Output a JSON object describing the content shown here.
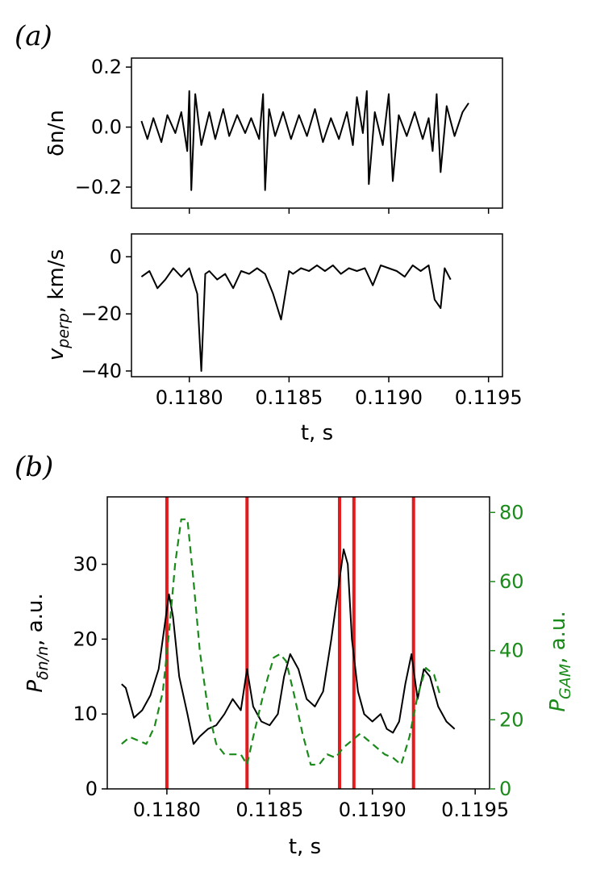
{
  "chart_data": [
    {
      "panel": "(a)",
      "type": "line",
      "title": "",
      "xlabel": "",
      "ylabel": "δn/n",
      "xlim": [
        0.11771,
        0.11957
      ],
      "ylim": [
        -0.27,
        0.23
      ],
      "yticks": [
        "0.2",
        "0.0",
        "−0.2"
      ],
      "ytick_values": [
        0.2,
        0.0,
        -0.2
      ],
      "xtick_values": [
        0.118,
        0.1185,
        0.119,
        0.1195
      ],
      "series": [
        {
          "name": "δn/n",
          "color": "#000000",
          "x": [
            0.11776,
            0.11779,
            0.11782,
            0.11786,
            0.11789,
            0.11793,
            0.11796,
            0.11799,
            0.118,
            0.11801,
            0.11803,
            0.11806,
            0.1181,
            0.11813,
            0.11817,
            0.1182,
            0.11824,
            0.11828,
            0.11831,
            0.11835,
            0.11837,
            0.11838,
            0.1184,
            0.11843,
            0.11847,
            0.11851,
            0.11855,
            0.11859,
            0.11863,
            0.11867,
            0.11871,
            0.11875,
            0.11879,
            0.11882,
            0.11884,
            0.11887,
            0.11889,
            0.1189,
            0.11893,
            0.11897,
            0.119,
            0.11902,
            0.11905,
            0.11909,
            0.11913,
            0.11917,
            0.1192,
            0.11922,
            0.11924,
            0.11926,
            0.11929,
            0.11933,
            0.11937,
            0.1194
          ],
          "values": [
            0.02,
            -0.04,
            0.03,
            -0.05,
            0.04,
            -0.02,
            0.05,
            -0.08,
            0.12,
            -0.21,
            0.11,
            -0.06,
            0.05,
            -0.04,
            0.06,
            -0.03,
            0.04,
            -0.02,
            0.03,
            -0.04,
            0.11,
            -0.21,
            0.06,
            -0.03,
            0.05,
            -0.04,
            0.04,
            -0.03,
            0.06,
            -0.05,
            0.03,
            -0.04,
            0.05,
            -0.06,
            0.1,
            -0.02,
            0.12,
            -0.19,
            0.05,
            -0.06,
            0.11,
            -0.18,
            0.04,
            -0.03,
            0.05,
            -0.04,
            0.03,
            -0.08,
            0.11,
            -0.15,
            0.07,
            -0.03,
            0.05,
            0.08
          ]
        }
      ]
    },
    {
      "panel": "",
      "type": "line",
      "title": "",
      "xlabel": "t, s",
      "ylabel": "v_perp, km/s",
      "ylabel_main": "v",
      "ylabel_sub": "perp",
      "ylabel_rest": ", km/s",
      "xlim": [
        0.11771,
        0.11957
      ],
      "ylim": [
        -42,
        8
      ],
      "yticks": [
        "0",
        "−20",
        "−40"
      ],
      "ytick_values": [
        0,
        -20,
        -40
      ],
      "xticks": [
        "0.1180",
        "0.1185",
        "0.1190",
        "0.1195"
      ],
      "xtick_values": [
        0.118,
        0.1185,
        0.119,
        0.1195
      ],
      "series": [
        {
          "name": "v_perp",
          "color": "#000000",
          "x": [
            0.11776,
            0.1178,
            0.11784,
            0.11788,
            0.11792,
            0.11796,
            0.118,
            0.11804,
            0.11806,
            0.11808,
            0.1181,
            0.11814,
            0.11818,
            0.11822,
            0.11826,
            0.1183,
            0.11834,
            0.11838,
            0.11842,
            0.11846,
            0.1185,
            0.11852,
            0.11856,
            0.1186,
            0.11864,
            0.11868,
            0.11872,
            0.11876,
            0.1188,
            0.11884,
            0.11888,
            0.11892,
            0.11896,
            0.119,
            0.11904,
            0.11908,
            0.11912,
            0.11916,
            0.1192,
            0.11923,
            0.11926,
            0.11928,
            0.11931
          ],
          "values": [
            -7,
            -5,
            -11,
            -8,
            -4,
            -7,
            -4,
            -13,
            -40,
            -6,
            -5,
            -8,
            -6,
            -11,
            -5,
            -6,
            -4,
            -6,
            -13,
            -22,
            -5,
            -6,
            -4,
            -5,
            -3,
            -5,
            -3,
            -6,
            -4,
            -5,
            -4,
            -10,
            -3,
            -4,
            -5,
            -7,
            -3,
            -5,
            -3,
            -15,
            -18,
            -4,
            -8
          ]
        }
      ]
    },
    {
      "panel": "(b)",
      "type": "line",
      "title": "",
      "xlabel": "t, s",
      "ylabel": "P_δn/n, a.u.",
      "ylabel_main": "P",
      "ylabel_sub": "δn/n",
      "ylabel_rest": ", a.u.",
      "ylabel_right": "P_GAM, a.u.",
      "ylabel_right_main": "P",
      "ylabel_right_sub": "GAM",
      "ylabel_right_rest": ", a.u.",
      "xlim": [
        0.11771,
        0.11957
      ],
      "ylim": [
        0,
        39
      ],
      "ylim_right": [
        0,
        84.5
      ],
      "yticks": [
        "0",
        "10",
        "20",
        "30"
      ],
      "ytick_values": [
        0,
        10,
        20,
        30
      ],
      "yticks_right": [
        "0",
        "20",
        "40",
        "60",
        "80"
      ],
      "ytick_right_values": [
        0,
        20,
        40,
        60,
        80
      ],
      "xticks": [
        "0.1180",
        "0.1185",
        "0.1190",
        "0.1195"
      ],
      "xtick_values": [
        0.118,
        0.1185,
        0.119,
        0.1195
      ],
      "vlines": [
        0.118,
        0.11839,
        0.11884,
        0.11891,
        0.1192
      ],
      "vline_color": "#e41a1c",
      "series": [
        {
          "name": "P_δn/n",
          "color": "#000000",
          "axis": "left",
          "x": [
            0.11778,
            0.1178,
            0.11784,
            0.11788,
            0.11792,
            0.11796,
            0.11799,
            0.11801,
            0.11803,
            0.11806,
            0.1181,
            0.11813,
            0.11816,
            0.1182,
            0.11824,
            0.11828,
            0.11832,
            0.11836,
            0.11839,
            0.11842,
            0.11846,
            0.1185,
            0.11854,
            0.11857,
            0.1186,
            0.11864,
            0.11868,
            0.11872,
            0.11876,
            0.1188,
            0.11884,
            0.11886,
            0.11888,
            0.1189,
            0.11893,
            0.11896,
            0.119,
            0.11904,
            0.11907,
            0.1191,
            0.11913,
            0.11916,
            0.11919,
            0.11922,
            0.11925,
            0.11928,
            0.11932,
            0.11936,
            0.1194
          ],
          "values": [
            14,
            13.5,
            9.5,
            10.5,
            12.5,
            16,
            22,
            26,
            23,
            15,
            10,
            6,
            7,
            8,
            8.5,
            10,
            12,
            10.5,
            16,
            11,
            9,
            8.5,
            10,
            15,
            18,
            16,
            12,
            11,
            13,
            20,
            28,
            32,
            30,
            20,
            13,
            10,
            9,
            10,
            8,
            7.5,
            9,
            14,
            18,
            12,
            16,
            15,
            11,
            9,
            8
          ]
        },
        {
          "name": "P_GAM",
          "color": "#1a8a1a",
          "axis": "right",
          "dashed": true,
          "x": [
            0.11778,
            0.11782,
            0.11786,
            0.1179,
            0.11794,
            0.11798,
            0.11801,
            0.11804,
            0.11807,
            0.1181,
            0.11813,
            0.11816,
            0.1182,
            0.11824,
            0.11828,
            0.11832,
            0.11836,
            0.11839,
            0.11842,
            0.11846,
            0.11849,
            0.11852,
            0.11855,
            0.11858,
            0.11862,
            0.11866,
            0.1187,
            0.11874,
            0.11878,
            0.11882,
            0.11886,
            0.1189,
            0.11894,
            0.11898,
            0.11902,
            0.11906,
            0.1191,
            0.11914,
            0.11918,
            0.11922,
            0.11926,
            0.1193,
            0.11933
          ],
          "values": [
            13,
            15,
            14,
            13,
            18,
            28,
            45,
            65,
            78,
            78,
            60,
            40,
            23,
            13,
            10,
            10,
            10,
            7,
            15,
            25,
            32,
            38,
            39,
            37,
            27,
            16,
            7,
            7,
            10,
            9,
            12,
            14,
            16,
            14,
            12,
            10,
            9,
            7,
            15,
            27,
            35,
            33,
            27
          ]
        }
      ]
    }
  ]
}
